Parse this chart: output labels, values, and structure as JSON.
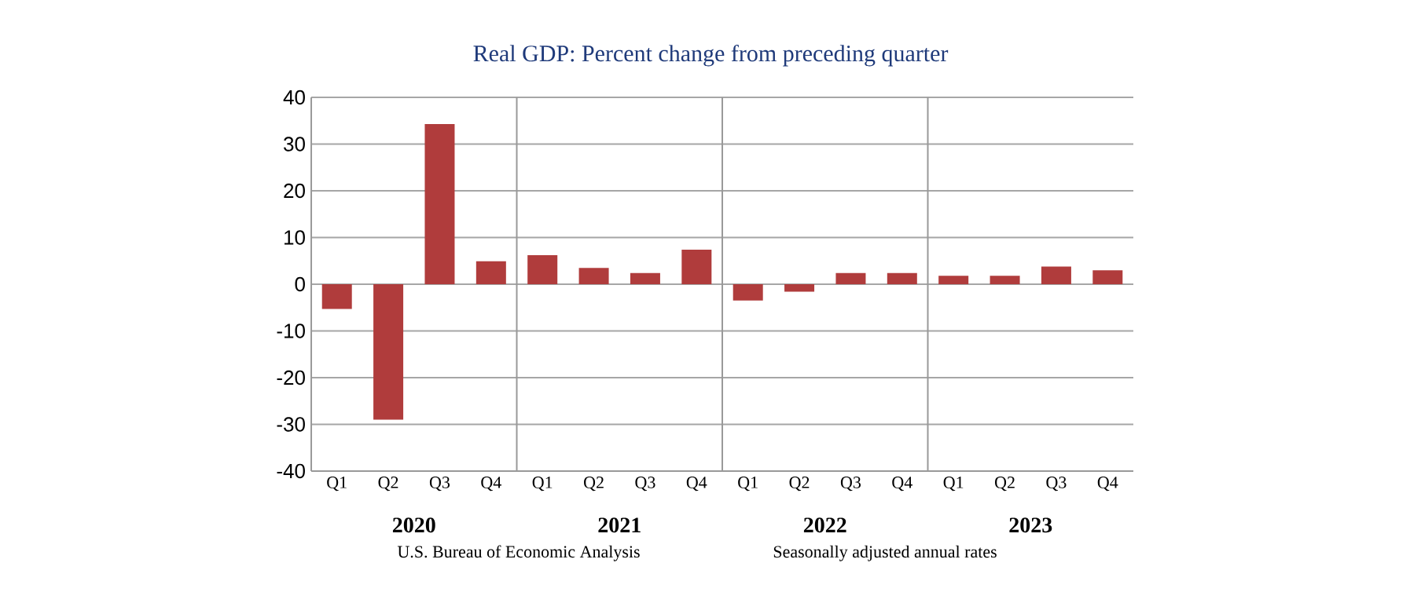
{
  "chart_data": {
    "type": "bar",
    "title": "Real GDP: Percent change from preceding quarter",
    "categories": [
      "Q1",
      "Q2",
      "Q3",
      "Q4",
      "Q1",
      "Q2",
      "Q3",
      "Q4",
      "Q1",
      "Q2",
      "Q3",
      "Q4",
      "Q1",
      "Q2",
      "Q3",
      "Q4"
    ],
    "values": [
      -5.3,
      -29,
      34.3,
      4.9,
      6.2,
      3.5,
      2.4,
      7.4,
      -3.5,
      -1.6,
      2.4,
      2.4,
      1.8,
      1.8,
      3.8,
      3.0
    ],
    "color": "#b03c3c",
    "ylim": [
      -40,
      40
    ],
    "yticks": [
      -40,
      -30,
      -20,
      -10,
      0,
      10,
      20,
      30,
      40
    ],
    "grid": "y",
    "annotations": [
      "2020",
      "2021",
      "2022",
      "2023",
      "U.S. Bureau of Economic Analysis",
      "Seasonally adjusted annual rates"
    ]
  }
}
